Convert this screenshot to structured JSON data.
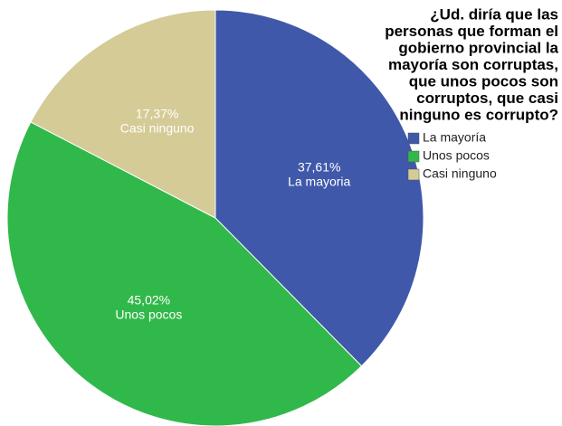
{
  "chart_data": {
    "type": "pie",
    "title": [
      "¿Ud. diría que las",
      "personas que forman el",
      "gobierno provincial la",
      "mayoría son corruptas,",
      "que unos pocos son",
      "corruptos, que casi",
      "ninguno es corrupto?"
    ],
    "categories": [
      "La mayoría",
      "Unos pocos",
      "Casi ninguno"
    ],
    "slice_labels": [
      "La mayoria",
      "Unos pocos",
      "Casi ninguno"
    ],
    "values": [
      37.61,
      45.02,
      17.37
    ],
    "value_labels": [
      "37,61%",
      "45,02%",
      "17,37%"
    ],
    "colors": [
      "#3f58a9",
      "#31b84a",
      "#d4cb96"
    ],
    "legend": "right"
  }
}
